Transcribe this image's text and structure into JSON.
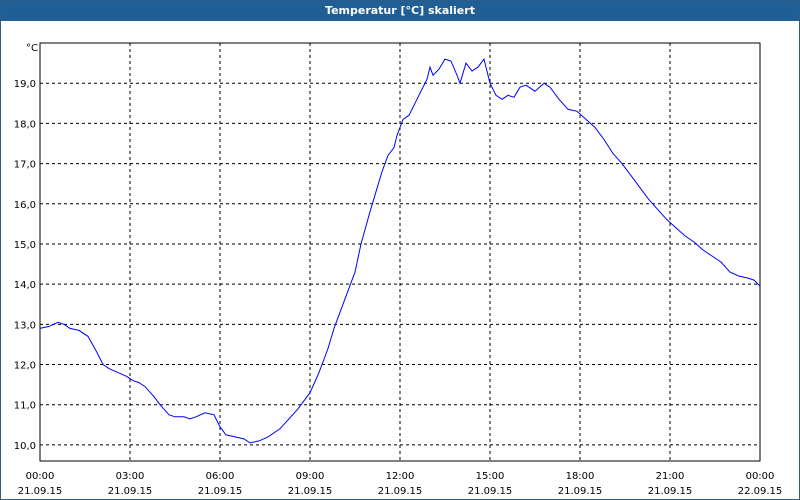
{
  "window": {
    "title": "Temperatur [°C] skaliert"
  },
  "chart_data": {
    "type": "line",
    "title": "Temperatur [°C] skaliert",
    "ylabel": "°C",
    "ylim": [
      9.6,
      20.0
    ],
    "yticks": [
      "10,0",
      "11,0",
      "12,0",
      "13,0",
      "14,0",
      "15,0",
      "16,0",
      "17,0",
      "18,0",
      "19,0"
    ],
    "ytick_values": [
      10,
      11,
      12,
      13,
      14,
      15,
      16,
      17,
      18,
      19
    ],
    "xlim": [
      0,
      24
    ],
    "xticks": [
      {
        "time": "00:00",
        "date": "21.09.15",
        "h": 0
      },
      {
        "time": "03:00",
        "date": "21.09.15",
        "h": 3
      },
      {
        "time": "06:00",
        "date": "21.09.15",
        "h": 6
      },
      {
        "time": "09:00",
        "date": "21.09.15",
        "h": 9
      },
      {
        "time": "12:00",
        "date": "21.09.15",
        "h": 12
      },
      {
        "time": "15:00",
        "date": "21.09.15",
        "h": 15
      },
      {
        "time": "18:00",
        "date": "21.09.15",
        "h": 18
      },
      {
        "time": "21:00",
        "date": "21.09.15",
        "h": 21
      },
      {
        "time": "00:00",
        "date": "22.09.15",
        "h": 24
      }
    ],
    "grid": true,
    "series": [
      {
        "color": "#0000ff",
        "x": [
          0,
          0.3,
          0.6,
          0.8,
          1.0,
          1.3,
          1.6,
          1.9,
          2.1,
          2.3,
          2.6,
          2.9,
          3.1,
          3.3,
          3.5,
          3.8,
          4.0,
          4.3,
          4.5,
          4.8,
          5.0,
          5.2,
          5.5,
          5.8,
          6.0,
          6.2,
          6.5,
          6.8,
          7.0,
          7.3,
          7.6,
          8.0,
          8.3,
          8.6,
          9.0,
          9.3,
          9.6,
          9.8,
          10.0,
          10.2,
          10.5,
          10.7,
          11.0,
          11.2,
          11.4,
          11.6,
          11.8,
          11.9,
          12.0,
          12.1,
          12.3,
          12.5,
          12.7,
          12.9,
          13.0,
          13.1,
          13.3,
          13.5,
          13.7,
          13.9,
          14.0,
          14.2,
          14.4,
          14.6,
          14.8,
          15.0,
          15.2,
          15.4,
          15.6,
          15.8,
          16.0,
          16.2,
          16.5,
          16.8,
          17.0,
          17.3,
          17.6,
          17.9,
          18.2,
          18.5,
          18.8,
          19.1,
          19.4,
          19.7,
          20.0,
          20.3,
          20.6,
          20.9,
          21.2,
          21.5,
          21.8,
          22.1,
          22.4,
          22.7,
          23.0,
          23.3,
          23.6,
          23.8,
          24.0
        ],
        "values": [
          12.9,
          12.95,
          13.05,
          13.0,
          12.9,
          12.85,
          12.7,
          12.3,
          12.0,
          11.9,
          11.8,
          11.7,
          11.6,
          11.55,
          11.45,
          11.2,
          11.0,
          10.75,
          10.7,
          10.7,
          10.65,
          10.7,
          10.8,
          10.75,
          10.45,
          10.25,
          10.2,
          10.15,
          10.05,
          10.1,
          10.2,
          10.4,
          10.65,
          10.9,
          11.3,
          11.8,
          12.4,
          12.9,
          13.3,
          13.7,
          14.3,
          15.0,
          15.8,
          16.3,
          16.8,
          17.2,
          17.4,
          17.7,
          17.9,
          18.1,
          18.2,
          18.5,
          18.8,
          19.1,
          19.4,
          19.2,
          19.35,
          19.6,
          19.55,
          19.2,
          19.0,
          19.5,
          19.3,
          19.4,
          19.6,
          19.0,
          18.7,
          18.6,
          18.7,
          18.65,
          18.9,
          18.95,
          18.8,
          19.0,
          18.9,
          18.6,
          18.35,
          18.3,
          18.1,
          17.9,
          17.6,
          17.25,
          17.0,
          16.7,
          16.4,
          16.1,
          15.85,
          15.6,
          15.4,
          15.2,
          15.05,
          14.85,
          14.7,
          14.55,
          14.3,
          14.2,
          14.15,
          14.1,
          13.95
        ]
      }
    ]
  }
}
